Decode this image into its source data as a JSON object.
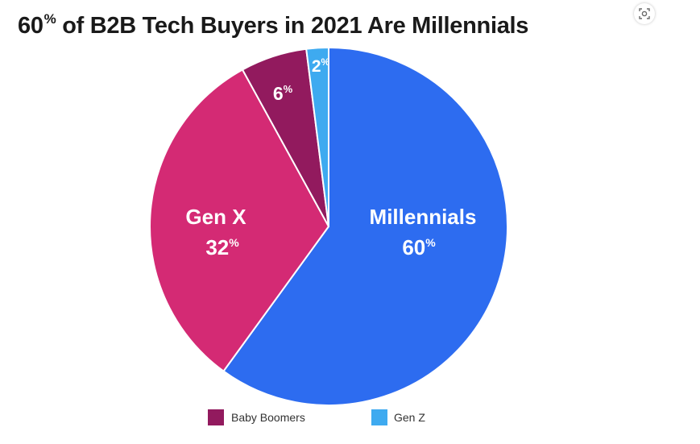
{
  "chart_data": {
    "type": "pie",
    "title": "60% of B2B Tech Buyers in 2021 Are Millennials",
    "slices": [
      {
        "label": "Millennials",
        "value": 60,
        "color": "#2d6cf0"
      },
      {
        "label": "Gen X",
        "value": 32,
        "color": "#d42a74"
      },
      {
        "label": "Baby Boomers",
        "value": 6,
        "color": "#921a5e"
      },
      {
        "label": "Gen Z",
        "value": 2,
        "color": "#3eaaf0"
      }
    ],
    "legend": {
      "placement": "bottom",
      "items": [
        {
          "label": "Baby Boomers",
          "color": "#921a5e"
        },
        {
          "label": "Gen Z",
          "color": "#3eaaf0"
        }
      ]
    },
    "value_labels": {
      "Millennials": "60",
      "Gen X": "32",
      "Baby Boomers": "6",
      "Gen Z": "2"
    },
    "value_suffix": "%"
  },
  "title": {
    "main_lead": "60",
    "main_suffix": "%",
    "main_rest": " of B2B Tech Buyers in 2021 Are Millennials"
  },
  "icons": {
    "lens": "visual-search-icon"
  }
}
